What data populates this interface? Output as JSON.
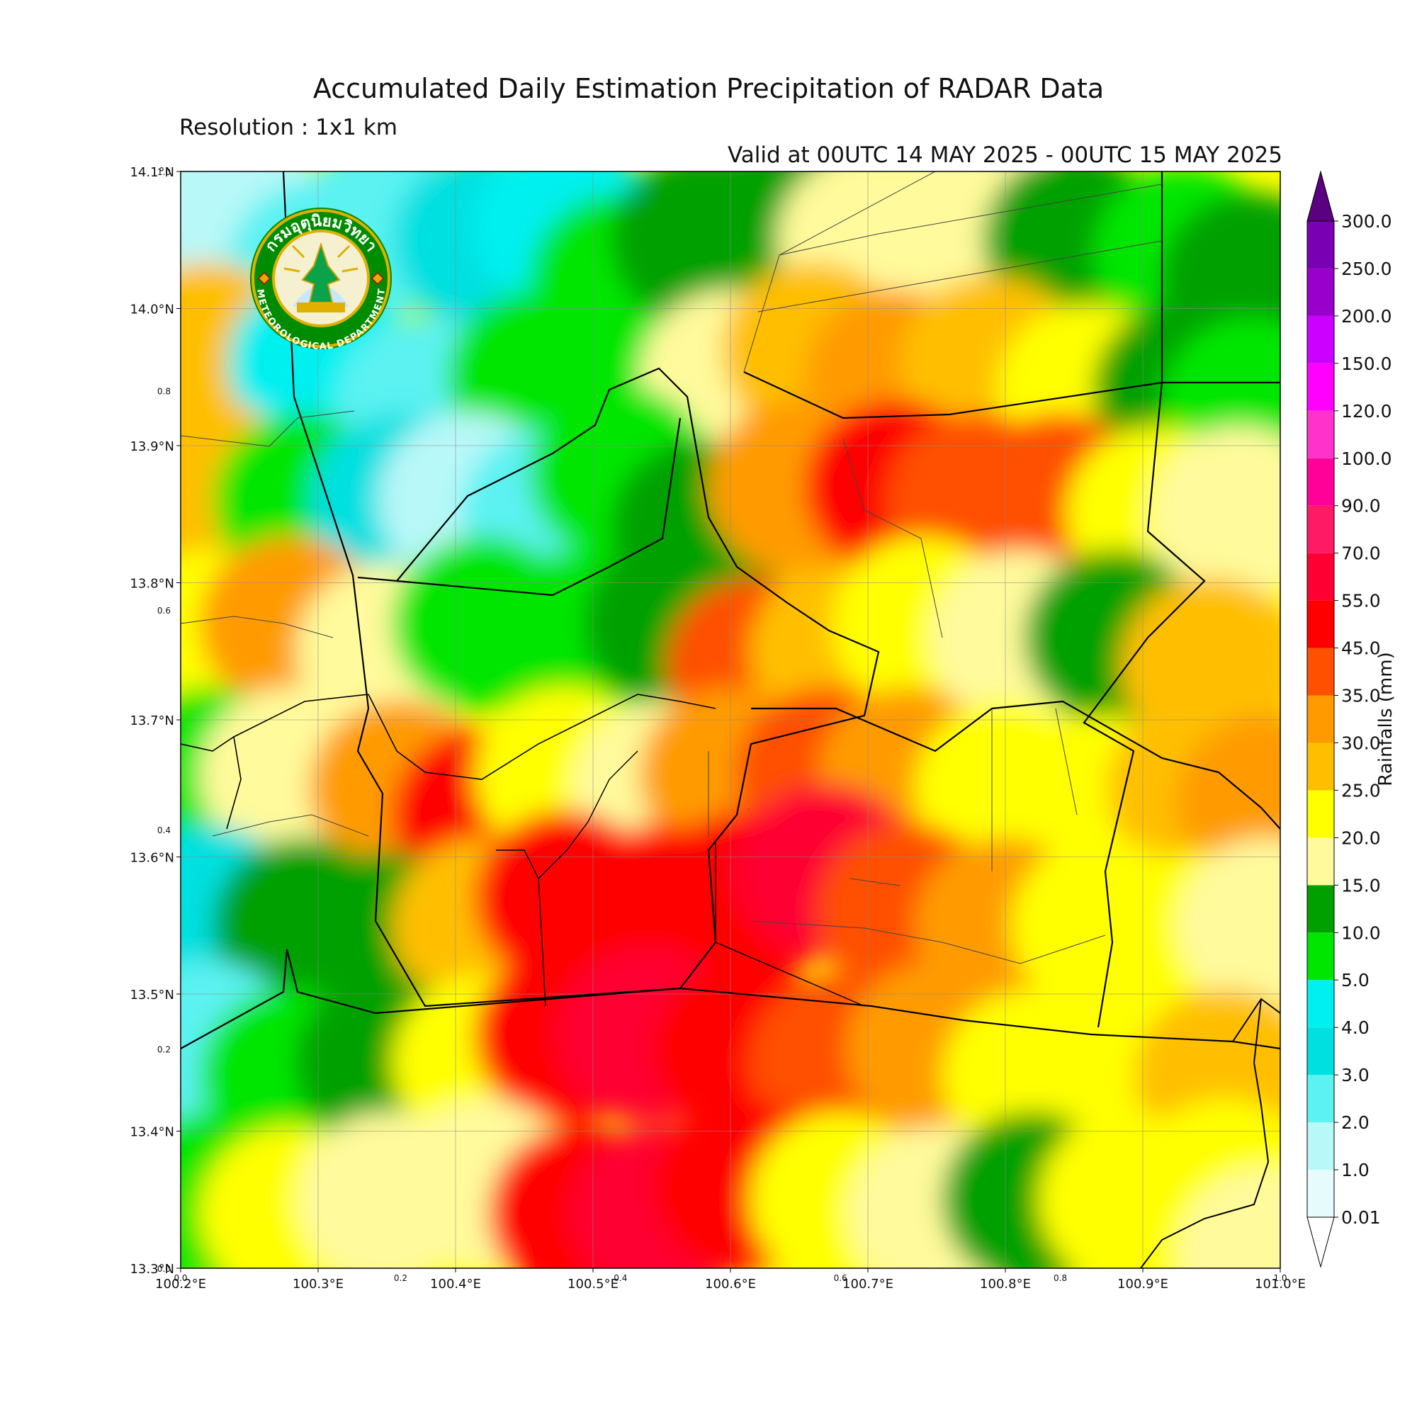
{
  "figure": {
    "title": "Accumulated Daily Estimation Precipitation of RADAR Data",
    "resolution": "Resolution : 1x1 km",
    "valid": "Valid at 00UTC 14 MAY 2025 - 00UTC 15 MAY 2025"
  },
  "map": {
    "lat_ticks": [
      "14.1°N",
      "14.0°N",
      "13.9°N",
      "13.8°N",
      "13.7°N",
      "13.6°N",
      "13.5°N",
      "13.4°N",
      "13.3°N"
    ],
    "lon_ticks": [
      "100.2°E",
      "100.3°E",
      "100.4°E",
      "100.5°E",
      "100.6°E",
      "100.7°E",
      "100.8°E",
      "100.9°E",
      "101.0°E"
    ],
    "frac_left": [
      "1.0",
      "0.8",
      "0.6",
      "0.4",
      "0.2",
      "0.0"
    ],
    "frac_bottom": [
      "0.0",
      "0.2",
      "0.4",
      "0.6",
      "0.8",
      "1.0"
    ],
    "extent": {
      "lon": [
        100.2,
        101.0
      ],
      "lat": [
        13.3,
        14.1
      ]
    },
    "gridlines": true,
    "rain_cells": [
      {
        "lon": 100.24,
        "lat": 14.07,
        "mm": 1.0
      },
      {
        "lon": 100.3,
        "lat": 14.03,
        "mm": 2.0
      },
      {
        "lon": 100.35,
        "lat": 14.06,
        "mm": 2.0
      },
      {
        "lon": 100.42,
        "lat": 14.05,
        "mm": 3.0
      },
      {
        "lon": 100.48,
        "lat": 14.06,
        "mm": 4.0
      },
      {
        "lon": 100.52,
        "lat": 14.02,
        "mm": 5.0
      },
      {
        "lon": 100.58,
        "lat": 14.05,
        "mm": 10.0
      },
      {
        "lon": 100.64,
        "lat": 14.06,
        "mm": 12.0
      },
      {
        "lon": 100.7,
        "lat": 14.05,
        "mm": 15.0
      },
      {
        "lon": 100.78,
        "lat": 14.07,
        "mm": 18.0
      },
      {
        "lon": 100.85,
        "lat": 14.05,
        "mm": 12.0
      },
      {
        "lon": 100.93,
        "lat": 14.04,
        "mm": 8.0
      },
      {
        "lon": 100.98,
        "lat": 14.02,
        "mm": 10.0
      },
      {
        "lon": 100.22,
        "lat": 13.97,
        "mm": 25.0
      },
      {
        "lon": 100.3,
        "lat": 13.96,
        "mm": 4.0
      },
      {
        "lon": 100.38,
        "lat": 13.93,
        "mm": 2.5
      },
      {
        "lon": 100.46,
        "lat": 13.95,
        "mm": 6.0
      },
      {
        "lon": 100.53,
        "lat": 13.93,
        "mm": 8.0
      },
      {
        "lon": 100.6,
        "lat": 13.95,
        "mm": 16.0
      },
      {
        "lon": 100.66,
        "lat": 13.97,
        "mm": 28.0
      },
      {
        "lon": 100.72,
        "lat": 13.95,
        "mm": 32.0
      },
      {
        "lon": 100.79,
        "lat": 13.96,
        "mm": 26.0
      },
      {
        "lon": 100.86,
        "lat": 13.94,
        "mm": 22.0
      },
      {
        "lon": 100.93,
        "lat": 13.94,
        "mm": 14.0
      },
      {
        "lon": 100.98,
        "lat": 13.93,
        "mm": 6.0
      },
      {
        "lon": 100.22,
        "lat": 13.87,
        "mm": 28.0
      },
      {
        "lon": 100.29,
        "lat": 13.86,
        "mm": 6.0
      },
      {
        "lon": 100.36,
        "lat": 13.86,
        "mm": 3.0
      },
      {
        "lon": 100.41,
        "lat": 13.86,
        "mm": 1.5
      },
      {
        "lon": 100.47,
        "lat": 13.85,
        "mm": 2.5
      },
      {
        "lon": 100.52,
        "lat": 13.88,
        "mm": 7.0
      },
      {
        "lon": 100.58,
        "lat": 13.84,
        "mm": 14.0
      },
      {
        "lon": 100.65,
        "lat": 13.87,
        "mm": 33.0
      },
      {
        "lon": 100.72,
        "lat": 13.87,
        "mm": 48.0
      },
      {
        "lon": 100.78,
        "lat": 13.86,
        "mm": 40.0
      },
      {
        "lon": 100.84,
        "lat": 13.86,
        "mm": 36.0
      },
      {
        "lon": 100.91,
        "lat": 13.85,
        "mm": 22.0
      },
      {
        "lon": 100.97,
        "lat": 13.85,
        "mm": 17.0
      },
      {
        "lon": 100.22,
        "lat": 13.76,
        "mm": 24.0
      },
      {
        "lon": 100.28,
        "lat": 13.77,
        "mm": 30.0
      },
      {
        "lon": 100.35,
        "lat": 13.75,
        "mm": 18.0
      },
      {
        "lon": 100.42,
        "lat": 13.77,
        "mm": 8.0
      },
      {
        "lon": 100.49,
        "lat": 13.76,
        "mm": 6.0
      },
      {
        "lon": 100.56,
        "lat": 13.77,
        "mm": 14.0
      },
      {
        "lon": 100.62,
        "lat": 13.74,
        "mm": 40.0
      },
      {
        "lon": 100.68,
        "lat": 13.75,
        "mm": 28.0
      },
      {
        "lon": 100.74,
        "lat": 13.77,
        "mm": 20.0
      },
      {
        "lon": 100.81,
        "lat": 13.76,
        "mm": 16.0
      },
      {
        "lon": 100.88,
        "lat": 13.76,
        "mm": 14.0
      },
      {
        "lon": 100.95,
        "lat": 13.74,
        "mm": 28.0
      },
      {
        "lon": 100.22,
        "lat": 13.66,
        "mm": 7.0
      },
      {
        "lon": 100.28,
        "lat": 13.66,
        "mm": 18.0
      },
      {
        "lon": 100.36,
        "lat": 13.65,
        "mm": 34.0
      },
      {
        "lon": 100.42,
        "lat": 13.63,
        "mm": 46.0
      },
      {
        "lon": 100.48,
        "lat": 13.66,
        "mm": 20.0
      },
      {
        "lon": 100.55,
        "lat": 13.65,
        "mm": 18.0
      },
      {
        "lon": 100.6,
        "lat": 13.66,
        "mm": 30.0
      },
      {
        "lon": 100.67,
        "lat": 13.66,
        "mm": 42.0
      },
      {
        "lon": 100.73,
        "lat": 13.66,
        "mm": 34.0
      },
      {
        "lon": 100.8,
        "lat": 13.65,
        "mm": 22.0
      },
      {
        "lon": 100.87,
        "lat": 13.64,
        "mm": 24.0
      },
      {
        "lon": 100.94,
        "lat": 13.65,
        "mm": 26.0
      },
      {
        "lon": 100.99,
        "lat": 13.64,
        "mm": 32.0
      },
      {
        "lon": 100.22,
        "lat": 13.56,
        "mm": 3.0
      },
      {
        "lon": 100.29,
        "lat": 13.55,
        "mm": 10.0
      },
      {
        "lon": 100.35,
        "lat": 13.54,
        "mm": 14.0
      },
      {
        "lon": 100.42,
        "lat": 13.55,
        "mm": 28.0
      },
      {
        "lon": 100.48,
        "lat": 13.57,
        "mm": 46.0
      },
      {
        "lon": 100.55,
        "lat": 13.56,
        "mm": 50.0
      },
      {
        "lon": 100.61,
        "lat": 13.57,
        "mm": 48.0
      },
      {
        "lon": 100.67,
        "lat": 13.59,
        "mm": 62.0
      },
      {
        "lon": 100.73,
        "lat": 13.56,
        "mm": 44.0
      },
      {
        "lon": 100.8,
        "lat": 13.55,
        "mm": 30.0
      },
      {
        "lon": 100.87,
        "lat": 13.55,
        "mm": 24.0
      },
      {
        "lon": 100.94,
        "lat": 13.54,
        "mm": 20.0
      },
      {
        "lon": 100.99,
        "lat": 13.55,
        "mm": 18.0
      },
      {
        "lon": 100.22,
        "lat": 13.46,
        "mm": 2.0
      },
      {
        "lon": 100.28,
        "lat": 13.44,
        "mm": 6.0
      },
      {
        "lon": 100.35,
        "lat": 13.45,
        "mm": 12.0
      },
      {
        "lon": 100.42,
        "lat": 13.45,
        "mm": 22.0
      },
      {
        "lon": 100.48,
        "lat": 13.47,
        "mm": 50.0
      },
      {
        "lon": 100.54,
        "lat": 13.47,
        "mm": 56.0
      },
      {
        "lon": 100.61,
        "lat": 13.46,
        "mm": 48.0
      },
      {
        "lon": 100.68,
        "lat": 13.45,
        "mm": 40.0
      },
      {
        "lon": 100.75,
        "lat": 13.46,
        "mm": 30.0
      },
      {
        "lon": 100.82,
        "lat": 13.44,
        "mm": 22.0
      },
      {
        "lon": 100.89,
        "lat": 13.45,
        "mm": 24.0
      },
      {
        "lon": 100.96,
        "lat": 13.44,
        "mm": 28.0
      },
      {
        "lon": 100.22,
        "lat": 13.35,
        "mm": 6.0
      },
      {
        "lon": 100.28,
        "lat": 13.34,
        "mm": 20.0
      },
      {
        "lon": 100.35,
        "lat": 13.35,
        "mm": 18.0
      },
      {
        "lon": 100.42,
        "lat": 13.36,
        "mm": 16.0
      },
      {
        "lon": 100.49,
        "lat": 13.34,
        "mm": 48.0
      },
      {
        "lon": 100.55,
        "lat": 13.34,
        "mm": 60.0
      },
      {
        "lon": 100.61,
        "lat": 13.36,
        "mm": 50.0
      },
      {
        "lon": 100.68,
        "lat": 13.35,
        "mm": 20.0
      },
      {
        "lon": 100.75,
        "lat": 13.34,
        "mm": 16.0
      },
      {
        "lon": 100.82,
        "lat": 13.35,
        "mm": 14.0
      },
      {
        "lon": 100.89,
        "lat": 13.35,
        "mm": 24.0
      },
      {
        "lon": 100.96,
        "lat": 13.36,
        "mm": 22.0
      },
      {
        "lon": 100.99,
        "lat": 13.31,
        "mm": 18.0
      }
    ]
  },
  "colorbar": {
    "label": "Rainfalls (mm)",
    "tick_labels": [
      "0.01",
      "1.0",
      "2.0",
      "3.0",
      "4.0",
      "5.0",
      "10.0",
      "15.0",
      "20.0",
      "25.0",
      "30.0",
      "35.0",
      "45.0",
      "55.0",
      "70.0",
      "90.0",
      "100.0",
      "120.0",
      "150.0",
      "200.0",
      "250.0",
      "300.0"
    ],
    "colors": [
      "#e6fcfc",
      "#b8f8f8",
      "#5cf2f2",
      "#00e0e0",
      "#00f0f0",
      "#00e600",
      "#00a000",
      "#fffa9b",
      "#ffff00",
      "#ffbf00",
      "#ff9b00",
      "#ff5000",
      "#ff0000",
      "#ff0033",
      "#ff1a66",
      "#ff0099",
      "#ff33cc",
      "#ff00ff",
      "#cc00ff",
      "#9900cc",
      "#7a00b3"
    ],
    "extend_over_color": "#5a0080",
    "extend_under_color": "#ffffff"
  },
  "logo": {
    "text_top": "กรมอุตุนิยมวิทยา",
    "text_bottom": "METEOROLOGICAL DEPARTMENT",
    "ring_color": "#008c00",
    "gold_color": "#e0b000"
  }
}
